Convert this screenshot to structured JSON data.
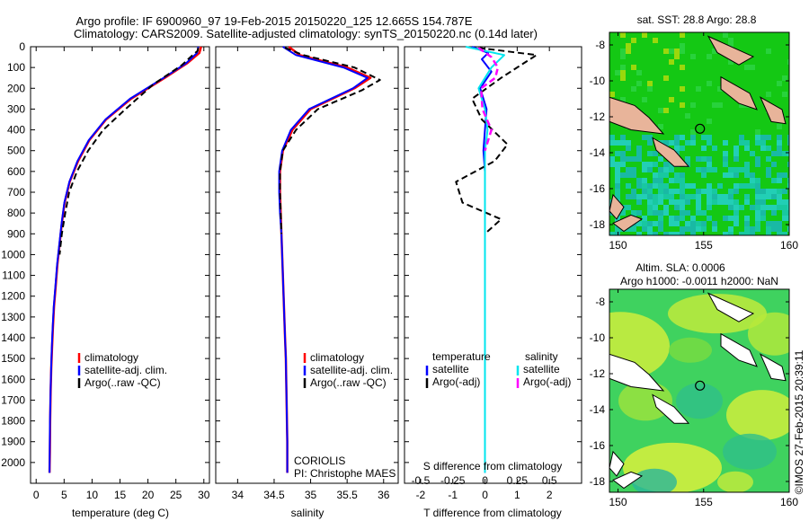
{
  "header": {
    "line1": "Argo profile: IF 6900960_97 19-Feb-2015 20150220_125 12.665S 154.787E",
    "line2": "Climatology: CARS2009. Satellite-adjusted climatology: synTS_20150220.nc (0.14d later)"
  },
  "colors": {
    "climatology": "#ff0000",
    "satellite": "#0000ff",
    "argo": "#000000",
    "sal_satellite": "#00e5ee",
    "sal_argo": "#ff00ff"
  },
  "legend_T": [
    "climatology",
    "satellite-adj. clim.",
    "Argo(..raw -QC)"
  ],
  "legend_S": [
    "climatology",
    "satellite-adj. clim.",
    "Argo(..raw -QC)"
  ],
  "legend_diff": {
    "temperature_head": "temperature",
    "salinity_head": "salinity",
    "satellite": "satellite",
    "argo": "Argo(-adj)"
  },
  "source": {
    "dac": "CORIOLIS",
    "pi": "PI: Christophe MAES"
  },
  "maps": {
    "sst_title": "sat. SST: 28.8 Argo: 28.8",
    "sla_title1": "Altim. SLA: 0.0006",
    "sla_title2": "Argo h1000: -0.0011 h2000: NaN",
    "lat_ticks": [
      "-8",
      "-10",
      "-12",
      "-14",
      "-16",
      "-18"
    ],
    "lon_ticks": [
      "150",
      "155",
      "160"
    ],
    "float_position": {
      "lon": 154.787,
      "lat": -12.665
    },
    "extent": {
      "lon": [
        149.5,
        160
      ],
      "lat": [
        -18.6,
        -7.3
      ]
    }
  },
  "credit": "©IMOS 27-Feb-2015 20:39:11",
  "chart_data": [
    {
      "type": "line",
      "xlabel": "temperature (deg C)",
      "ylabel": "",
      "xlim": [
        -1,
        31
      ],
      "ylim": [
        2100,
        0
      ],
      "xticks": [
        "0",
        "5",
        "10",
        "15",
        "20",
        "25",
        "30"
      ],
      "yticks": [
        "0",
        "100",
        "200",
        "300",
        "400",
        "500",
        "600",
        "700",
        "800",
        "900",
        "1000",
        "1100",
        "1200",
        "1300",
        "1400",
        "1500",
        "1600",
        "1700",
        "1800",
        "1900",
        "2000"
      ],
      "series": [
        {
          "name": "climatology",
          "x": [
            29.5,
            29.2,
            27.0,
            23.0,
            17.0,
            12.5,
            9.5,
            7.5,
            6.0,
            5.1,
            4.6,
            4.2,
            3.8,
            3.5,
            3.2,
            3.0,
            2.85,
            2.7,
            2.6,
            2.5,
            2.45,
            2.4
          ],
          "y": [
            0,
            30,
            80,
            150,
            250,
            350,
            450,
            550,
            650,
            750,
            850,
            950,
            1050,
            1150,
            1250,
            1350,
            1450,
            1550,
            1650,
            1800,
            1950,
            2050
          ]
        },
        {
          "name": "satellite-adj. clim.",
          "x": [
            29.0,
            28.8,
            26.8,
            22.8,
            16.8,
            12.4,
            9.4,
            7.4,
            5.95,
            5.05,
            4.55,
            4.15,
            3.75,
            3.45,
            3.15,
            2.95,
            2.8,
            2.68,
            2.58,
            2.48,
            2.43,
            2.4
          ],
          "y": [
            0,
            30,
            80,
            150,
            250,
            350,
            450,
            550,
            650,
            750,
            850,
            950,
            1050,
            1150,
            1250,
            1350,
            1450,
            1550,
            1650,
            1800,
            1950,
            2050
          ]
        },
        {
          "name": "Argo(..raw -QC)",
          "x": [
            29.0,
            28.9,
            28.0,
            26.0,
            21.0,
            16.0,
            12.0,
            9.3,
            7.3,
            5.9,
            5.2,
            4.6,
            4.2
          ],
          "y": [
            5,
            20,
            40,
            90,
            180,
            300,
            400,
            500,
            600,
            700,
            800,
            900,
            1000
          ]
        }
      ]
    },
    {
      "type": "line",
      "xlabel": "salinity",
      "ylabel": "",
      "xlim": [
        33.7,
        36.2
      ],
      "ylim": [
        2100,
        0
      ],
      "xticks": [
        "34",
        "34.5",
        "35",
        "35.5",
        "36"
      ],
      "series": [
        {
          "name": "climatology",
          "x": [
            34.7,
            34.85,
            35.5,
            35.82,
            35.6,
            35.0,
            34.75,
            34.62,
            34.58,
            34.58,
            34.59,
            34.6,
            34.61,
            34.62,
            34.63,
            34.64,
            34.65,
            34.66,
            34.67,
            34.68,
            34.68
          ],
          "y": [
            0,
            40,
            100,
            150,
            200,
            300,
            400,
            500,
            600,
            700,
            800,
            900,
            1000,
            1100,
            1200,
            1300,
            1400,
            1500,
            1700,
            1900,
            2050
          ]
        },
        {
          "name": "satellite-adj. clim.",
          "x": [
            34.62,
            34.8,
            35.45,
            35.78,
            35.58,
            34.98,
            34.73,
            34.61,
            34.57,
            34.57,
            34.58,
            34.6,
            34.61,
            34.62,
            34.63,
            34.64,
            34.65,
            34.66,
            34.67,
            34.68,
            34.68
          ],
          "y": [
            0,
            40,
            100,
            150,
            200,
            300,
            400,
            500,
            600,
            700,
            800,
            900,
            1000,
            1100,
            1200,
            1300,
            1400,
            1500,
            1700,
            1900,
            2050
          ]
        },
        {
          "name": "Argo(..raw -QC)",
          "x": [
            34.65,
            34.9,
            35.6,
            35.95,
            35.7,
            35.1,
            34.8,
            34.62,
            34.58,
            34.58,
            34.59,
            34.6
          ],
          "y": [
            5,
            40,
            100,
            160,
            210,
            300,
            400,
            500,
            600,
            700,
            800,
            900
          ]
        }
      ]
    },
    {
      "type": "line",
      "xlabel": "T difference from climatology",
      "x2label": "S difference from climatology",
      "ylabel": "",
      "xlim": [
        -2.5,
        3.0
      ],
      "x2lim": [
        -0.625,
        0.75
      ],
      "ylim": [
        2100,
        0
      ],
      "xticks": [
        "-2",
        "-1",
        "0",
        "1",
        "2"
      ],
      "x2ticks": [
        "-0.5",
        "-0.25",
        "0",
        "0.25",
        "0.5"
      ],
      "series": [
        {
          "name": "temperature satellite",
          "x": [
            -0.4,
            0.1,
            -0.1,
            0.2,
            -0.15,
            0.05,
            0.0,
            -0.05,
            0.0,
            0.0,
            0.0,
            0.0,
            0.0,
            0.0,
            0.0,
            0.0,
            0.0,
            0.0
          ],
          "y": [
            0,
            30,
            60,
            120,
            200,
            300,
            400,
            500,
            600,
            700,
            800,
            900,
            1100,
            1300,
            1500,
            1700,
            1900,
            2050
          ]
        },
        {
          "name": "temperature Argo(-adj)",
          "x": [
            -0.2,
            1.6,
            1.2,
            0.5,
            -0.4,
            -0.1,
            0.7,
            0.3,
            -0.9,
            -0.7,
            0.5,
            0.0
          ],
          "y": [
            5,
            40,
            80,
            150,
            250,
            350,
            470,
            550,
            650,
            750,
            830,
            900
          ]
        },
        {
          "name": "salinity satellite",
          "x": [
            -0.15,
            0.15,
            0.05,
            -0.05,
            0.0,
            0.02,
            0.0,
            0.0,
            0.0,
            0.0,
            0.0,
            0.0,
            0.0,
            0.0,
            0.0,
            0.0,
            0.0
          ],
          "y": [
            0,
            40,
            100,
            200,
            300,
            400,
            500,
            600,
            700,
            800,
            1000,
            1200,
            1400,
            1600,
            1800,
            1900,
            2050
          ]
        },
        {
          "name": "salinity Argo(-adj)",
          "x": [
            -0.05,
            0.05,
            0.1,
            0.08,
            -0.03,
            -0.02,
            0.05,
            0.0
          ],
          "y": [
            5,
            50,
            100,
            150,
            200,
            300,
            400,
            500
          ]
        }
      ]
    }
  ]
}
